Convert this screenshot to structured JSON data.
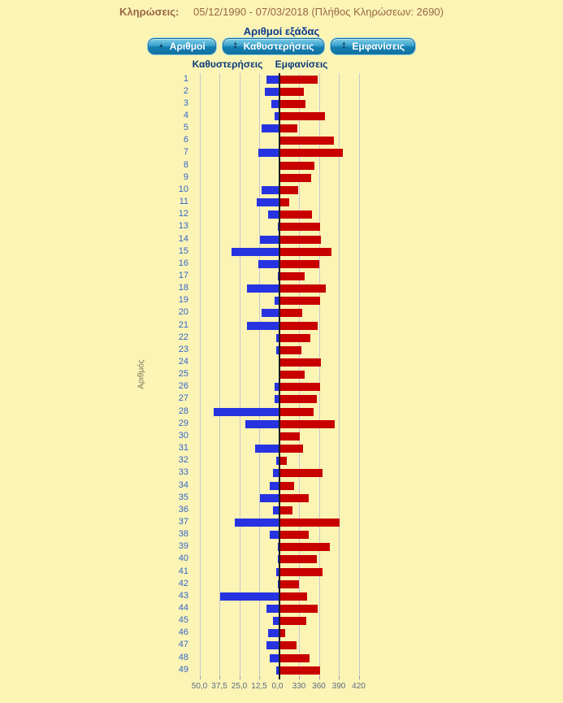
{
  "header": {
    "label": "Κληρώσεις:",
    "range": "05/12/1990 - 07/03/2018",
    "count_text": "(Πλήθος Κληρώσεων: 2690)"
  },
  "title": "Αριθμοί εξάδας",
  "colors": {
    "background": "#fbf4b5",
    "delay_bar": "#2733e0",
    "appearance_bar": "#c80000",
    "center_line": "#1c1c1c",
    "gridline": "#c6c6d0",
    "row_label": "#3566cc",
    "header_text": "#996644",
    "title_text": "#0a3a90",
    "button": "#1480b2"
  },
  "buttons": [
    {
      "name": "sort-numbers",
      "label": "Αριθμοί",
      "icon": "sort-ascending-icon",
      "glyph_up": "▲",
      "glyph_down": ""
    },
    {
      "name": "sort-delays",
      "label": "Καθυστερήσεις",
      "icon": "sort-both-icon",
      "glyph_up": "▲",
      "glyph_down": "▼"
    },
    {
      "name": "sort-appearances",
      "label": "Εμφανίσεις",
      "icon": "sort-both-icon",
      "glyph_up": "▲",
      "glyph_down": "▼"
    }
  ],
  "chart_data": {
    "type": "bar",
    "orientation": "horizontal-diverging",
    "ylabel": "Αριθμός",
    "column_headers": [
      "Καθυστερήσεις",
      "Εμφανίσεις"
    ],
    "grid": true,
    "categories": [
      1,
      2,
      3,
      4,
      5,
      6,
      7,
      8,
      9,
      10,
      11,
      12,
      13,
      14,
      15,
      16,
      17,
      18,
      19,
      20,
      21,
      22,
      23,
      24,
      25,
      26,
      27,
      28,
      29,
      30,
      31,
      32,
      33,
      34,
      35,
      36,
      37,
      38,
      39,
      40,
      41,
      42,
      43,
      44,
      45,
      46,
      47,
      48,
      49
    ],
    "series": [
      {
        "name": "Καθυστερήσεις",
        "direction": "left",
        "color": "#2733e0",
        "axis_range": [
          0,
          50
        ],
        "tick_labels": [
          "50,0",
          "37,5",
          "25,0",
          "12,5",
          "0,0"
        ],
        "tick_values": [
          50,
          37.5,
          25,
          12.5,
          0
        ],
        "values": [
          8,
          9,
          5,
          3,
          11,
          0,
          13,
          0,
          0,
          11,
          14,
          7,
          1,
          12,
          30,
          13,
          1,
          20,
          3,
          11,
          20,
          2,
          2,
          0,
          0,
          3,
          3,
          41,
          21,
          0,
          15,
          2,
          4,
          6,
          12,
          4,
          28,
          6,
          1,
          1,
          2,
          1,
          37,
          8,
          4,
          7,
          8,
          6,
          2
        ]
      },
      {
        "name": "Εμφανίσεις",
        "direction": "right",
        "color": "#c80000",
        "base": 300,
        "axis_range": [
          300,
          420
        ],
        "tick_labels": [
          "330",
          "360",
          "390",
          "420"
        ],
        "tick_values": [
          330,
          360,
          390,
          420
        ],
        "values": [
          358,
          337,
          339,
          369,
          327,
          382,
          396,
          353,
          348,
          328,
          315,
          349,
          361,
          363,
          378,
          360,
          338,
          370,
          361,
          334,
          357,
          347,
          333,
          363,
          338,
          361,
          356,
          352,
          383,
          331,
          336,
          311,
          365,
          322,
          344,
          319,
          391,
          344,
          376,
          356,
          365,
          329,
          342,
          358,
          340,
          309,
          326,
          345,
          361
        ]
      }
    ]
  }
}
